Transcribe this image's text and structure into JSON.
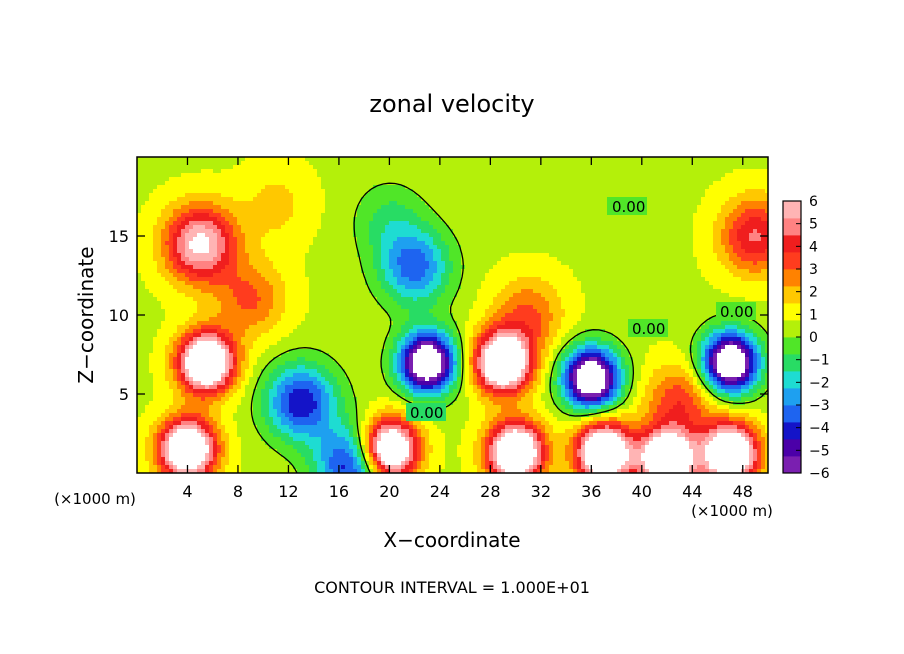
{
  "chart_data": {
    "type": "heatmap",
    "title": "zonal velocity",
    "xlabel": "X−coordinate",
    "ylabel": "Z−coordinate",
    "x_units": "(×1000 m)",
    "y_units": "(×1000 m)",
    "xlim": [
      0,
      50
    ],
    "ylim": [
      0,
      20
    ],
    "x_ticks": [
      4,
      8,
      12,
      16,
      20,
      24,
      28,
      32,
      36,
      40,
      44,
      48
    ],
    "x_tick_labels": [
      "4",
      "8",
      "12",
      "16",
      "20",
      "24",
      "28",
      "32",
      "36",
      "40",
      "44",
      "48"
    ],
    "y_ticks": [
      5,
      10,
      15
    ],
    "y_tick_labels": [
      "5",
      "10",
      "15"
    ],
    "colorbar": {
      "min": -6,
      "max": 6,
      "ticks": [
        6,
        5,
        4,
        3,
        2,
        1,
        0,
        -1,
        -2,
        -3,
        -4,
        -5,
        -6
      ],
      "tick_labels": [
        "6",
        "5",
        "4",
        "3",
        "2",
        "1",
        "0",
        "−1",
        "−2",
        "−3",
        "−4",
        "−5",
        "−6"
      ],
      "colors": [
        "#7a1fb0",
        "#4b00a8",
        "#1414c8",
        "#1e64f0",
        "#1ea0f0",
        "#1edcd2",
        "#28dc64",
        "#50e628",
        "#b4f00a",
        "#ffff00",
        "#ffc800",
        "#ff8200",
        "#ff3c1e",
        "#f01e1e",
        "#ff8282",
        "#ffb4b4"
      ]
    },
    "contour_labels": [
      "0.00",
      "0.00",
      "0.00",
      "0.00"
    ],
    "features": [
      {
        "x": 5,
        "z": 14.5,
        "v": 5.8
      },
      {
        "x": 11,
        "z": 17,
        "v": 1.2
      },
      {
        "x": 20,
        "z": 16,
        "v": -1.5
      },
      {
        "x": 22,
        "z": 13,
        "v": -4
      },
      {
        "x": 5.5,
        "z": 7,
        "v": 9
      },
      {
        "x": 13,
        "z": 4.5,
        "v": -5
      },
      {
        "x": 23,
        "z": 7,
        "v": -9
      },
      {
        "x": 29,
        "z": 7,
        "v": 9
      },
      {
        "x": 36,
        "z": 6,
        "v": -9
      },
      {
        "x": 43,
        "z": 4.5,
        "v": 3
      },
      {
        "x": 47,
        "z": 7,
        "v": -9
      },
      {
        "x": 49,
        "z": 15,
        "v": 4
      },
      {
        "x": 4,
        "z": 1.5,
        "v": 9
      },
      {
        "x": 20,
        "z": 1.5,
        "v": 9
      },
      {
        "x": 30,
        "z": 1.3,
        "v": 9
      },
      {
        "x": 37,
        "z": 1.3,
        "v": 9
      },
      {
        "x": 42,
        "z": 0.8,
        "v": 9
      },
      {
        "x": 47,
        "z": 1.2,
        "v": 9
      },
      {
        "x": 17,
        "z": 0.5,
        "v": -5
      },
      {
        "x": 9,
        "z": 11,
        "v": 2.5
      },
      {
        "x": 31,
        "z": 10,
        "v": 2.5
      }
    ],
    "footer": "CONTOUR INTERVAL = 1.000E+01"
  }
}
